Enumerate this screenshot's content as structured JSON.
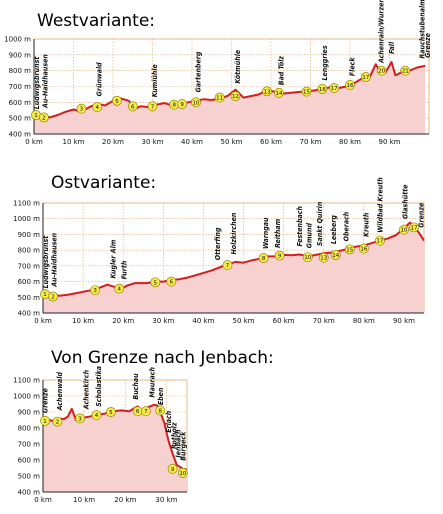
{
  "chart_data": [
    {
      "type": "area",
      "title": "Westvariante:",
      "x_unit": "km",
      "y_unit": "m",
      "xlim": [
        0,
        100
      ],
      "ylim": [
        400,
        1000
      ],
      "x_ticks": [
        0,
        10,
        20,
        30,
        40,
        50,
        60,
        70,
        80,
        90
      ],
      "y_ticks": [
        400,
        500,
        600,
        700,
        800,
        900,
        1000
      ],
      "grid": true,
      "colors": {
        "fill": "#f7d0d0",
        "line": "#d21e1e",
        "marker_fill": "#f4ea4a",
        "marker_stroke": "#8a7a00",
        "grid": "#e3a96a",
        "axis": "#222222"
      },
      "profile": [
        [
          0,
          500
        ],
        [
          2,
          520
        ],
        [
          4,
          505
        ],
        [
          6,
          520
        ],
        [
          8,
          540
        ],
        [
          10,
          555
        ],
        [
          12,
          540
        ],
        [
          14,
          570
        ],
        [
          16,
          590
        ],
        [
          18,
          580
        ],
        [
          20,
          610
        ],
        [
          22,
          625
        ],
        [
          24,
          610
        ],
        [
          25.5,
          560
        ],
        [
          27,
          575
        ],
        [
          29,
          570
        ],
        [
          31,
          585
        ],
        [
          33,
          595
        ],
        [
          35,
          580
        ],
        [
          37,
          590
        ],
        [
          39,
          600
        ],
        [
          41,
          610
        ],
        [
          43,
          620
        ],
        [
          45,
          615
        ],
        [
          47,
          625
        ],
        [
          49,
          640
        ],
        [
          51,
          680
        ],
        [
          53,
          630
        ],
        [
          55,
          640
        ],
        [
          57,
          650
        ],
        [
          59,
          680
        ],
        [
          61,
          665
        ],
        [
          63,
          655
        ],
        [
          65,
          660
        ],
        [
          67,
          665
        ],
        [
          69,
          670
        ],
        [
          71,
          675
        ],
        [
          73,
          685
        ],
        [
          75,
          695
        ],
        [
          77,
          690
        ],
        [
          79,
          700
        ],
        [
          81,
          720
        ],
        [
          83,
          750
        ],
        [
          85,
          760
        ],
        [
          86.5,
          840
        ],
        [
          87.5,
          800
        ],
        [
          89,
          790
        ],
        [
          90.5,
          855
        ],
        [
          91.5,
          770
        ],
        [
          93,
          790
        ],
        [
          95,
          800
        ],
        [
          97,
          820
        ],
        [
          99,
          830
        ]
      ],
      "markers": [
        {
          "n": "1",
          "x": 0.5,
          "y": 520
        },
        {
          "n": "2",
          "x": 2.5,
          "y": 505
        },
        {
          "n": "3",
          "x": 12,
          "y": 560
        },
        {
          "n": "4",
          "x": 16,
          "y": 570
        },
        {
          "n": "5",
          "x": 21,
          "y": 610
        },
        {
          "n": "6",
          "x": 25,
          "y": 575
        },
        {
          "n": "7",
          "x": 30,
          "y": 575
        },
        {
          "n": "8",
          "x": 35.5,
          "y": 585
        },
        {
          "n": "9",
          "x": 37.5,
          "y": 590
        },
        {
          "n": "10",
          "x": 41,
          "y": 600
        },
        {
          "n": "11",
          "x": 47,
          "y": 630
        },
        {
          "n": "12",
          "x": 51,
          "y": 640
        },
        {
          "n": "13",
          "x": 59,
          "y": 670
        },
        {
          "n": "14",
          "x": 62,
          "y": 660
        },
        {
          "n": "15",
          "x": 69,
          "y": 668
        },
        {
          "n": "16",
          "x": 73,
          "y": 685
        },
        {
          "n": "17",
          "x": 76,
          "y": 690
        },
        {
          "n": "16",
          "x": 80,
          "y": 710
        },
        {
          "n": "17",
          "x": 84,
          "y": 760
        },
        {
          "n": "20",
          "x": 88,
          "y": 800
        },
        {
          "n": "21",
          "x": 94,
          "y": 800
        }
      ],
      "places": [
        {
          "label": "Ludwigsbrunst",
          "x": 0.6
        },
        {
          "label": "Au-Haidhausen",
          "x": 2.8
        },
        {
          "label": "Grünwald",
          "x": 16.5
        },
        {
          "label": "Kumiühle",
          "x": 30.5
        },
        {
          "label": "Gartenberg",
          "x": 41.5
        },
        {
          "label": "Kötmühle",
          "x": 51.5
        },
        {
          "label": "Bad Tölz",
          "x": 62.5
        },
        {
          "label": "Lenggries",
          "x": 73.5
        },
        {
          "label": "Fleck",
          "x": 80.5
        },
        {
          "label": "Achenrain/Wurzenstein",
          "x": 87.8
        },
        {
          "label": "Fall",
          "x": 90.5
        },
        {
          "label": "Rauchstubenalm",
          "x": 98.2
        },
        {
          "label": "Grenze",
          "x": 99.6
        }
      ]
    },
    {
      "type": "area",
      "title": "Ostvariante:",
      "x_unit": "km",
      "y_unit": "m",
      "xlim": [
        0,
        95
      ],
      "ylim": [
        400,
        1100
      ],
      "x_ticks": [
        0,
        10,
        20,
        30,
        40,
        50,
        60,
        70,
        80,
        90
      ],
      "y_ticks": [
        400,
        500,
        600,
        700,
        800,
        900,
        1000,
        1100
      ],
      "grid": true,
      "colors": {
        "fill": "#f7d0d0",
        "line": "#d21e1e",
        "marker_fill": "#f4ea4a",
        "marker_stroke": "#8a7a00",
        "grid": "#e3a96a",
        "axis": "#222222"
      },
      "profile": [
        [
          0,
          500
        ],
        [
          2,
          520
        ],
        [
          4,
          510
        ],
        [
          6,
          515
        ],
        [
          8,
          525
        ],
        [
          10,
          535
        ],
        [
          12,
          545
        ],
        [
          14,
          560
        ],
        [
          16,
          580
        ],
        [
          18,
          565
        ],
        [
          19,
          545
        ],
        [
          21,
          575
        ],
        [
          23,
          590
        ],
        [
          26,
          590
        ],
        [
          28,
          600
        ],
        [
          30,
          600
        ],
        [
          32,
          610
        ],
        [
          34,
          615
        ],
        [
          36,
          625
        ],
        [
          38,
          640
        ],
        [
          40,
          655
        ],
        [
          42,
          670
        ],
        [
          44,
          690
        ],
        [
          46,
          710
        ],
        [
          48,
          725
        ],
        [
          50,
          720
        ],
        [
          52,
          735
        ],
        [
          54,
          745
        ],
        [
          56,
          760
        ],
        [
          58,
          760
        ],
        [
          60,
          770
        ],
        [
          62,
          768
        ],
        [
          64,
          772
        ],
        [
          66,
          760
        ],
        [
          68,
          770
        ],
        [
          70,
          780
        ],
        [
          72,
          785
        ],
        [
          74,
          795
        ],
        [
          76,
          808
        ],
        [
          78,
          822
        ],
        [
          80,
          830
        ],
        [
          82,
          845
        ],
        [
          84,
          860
        ],
        [
          86,
          875
        ],
        [
          88,
          895
        ],
        [
          90,
          940
        ],
        [
          91.5,
          975
        ],
        [
          92.5,
          955
        ],
        [
          94,
          900
        ],
        [
          95,
          860
        ]
      ],
      "markers": [
        {
          "n": "1",
          "x": 0.5,
          "y": 520
        },
        {
          "n": "2",
          "x": 2.5,
          "y": 505
        },
        {
          "n": "3",
          "x": 13,
          "y": 545
        },
        {
          "n": "4",
          "x": 19,
          "y": 555
        },
        {
          "n": "5",
          "x": 28,
          "y": 595
        },
        {
          "n": "6",
          "x": 32,
          "y": 600
        },
        {
          "n": "7",
          "x": 46,
          "y": 705
        },
        {
          "n": "8",
          "x": 55,
          "y": 750
        },
        {
          "n": "9",
          "x": 59,
          "y": 765
        },
        {
          "n": "10",
          "x": 66,
          "y": 755
        },
        {
          "n": "13",
          "x": 70,
          "y": 752
        },
        {
          "n": "14",
          "x": 73,
          "y": 770
        },
        {
          "n": "15",
          "x": 76.5,
          "y": 805
        },
        {
          "n": "16",
          "x": 80,
          "y": 810
        },
        {
          "n": "17",
          "x": 84,
          "y": 860
        },
        {
          "n": "10",
          "x": 90,
          "y": 930
        },
        {
          "n": "17",
          "x": 92.5,
          "y": 945
        }
      ],
      "places": [
        {
          "label": "Ludwigsbrunst",
          "x": 0.6
        },
        {
          "label": "Au-Haidhausen",
          "x": 2.8
        },
        {
          "label": "Kugler Alm",
          "x": 17.5
        },
        {
          "label": "Furth",
          "x": 20.2
        },
        {
          "label": "Otterfing",
          "x": 43.5
        },
        {
          "label": "Holzkirchen",
          "x": 47.5
        },
        {
          "label": "Warngau",
          "x": 55.5
        },
        {
          "label": "Reitham",
          "x": 58.5
        },
        {
          "label": "Festenbach",
          "x": 64
        },
        {
          "label": "Gmund",
          "x": 66.3
        },
        {
          "label": "Sankt Quirin",
          "x": 69
        },
        {
          "label": "Leeberg",
          "x": 72.5
        },
        {
          "label": "Oberach",
          "x": 75.5
        },
        {
          "label": "Kreuth",
          "x": 80.5
        },
        {
          "label": "Wildbad Kreuth",
          "x": 84
        },
        {
          "label": "Glashütte",
          "x": 90.3
        },
        {
          "label": "Grenze",
          "x": 94.2
        }
      ]
    },
    {
      "type": "area",
      "title": "Von Grenze nach Jenbach:",
      "x_unit": "km",
      "y_unit": "m",
      "xlim": [
        0,
        35
      ],
      "ylim": [
        400,
        1100
      ],
      "x_ticks": [
        0,
        10,
        20,
        30
      ],
      "y_ticks": [
        400,
        500,
        600,
        700,
        800,
        900,
        1000,
        1100
      ],
      "grid": true,
      "colors": {
        "fill": "#f7d0d0",
        "line": "#d21e1e",
        "marker_fill": "#f4ea4a",
        "marker_stroke": "#8a7a00",
        "grid": "#e3a96a",
        "axis": "#222222"
      },
      "profile": [
        [
          0,
          840
        ],
        [
          1.5,
          850
        ],
        [
          3,
          840
        ],
        [
          4,
          860
        ],
        [
          5,
          855
        ],
        [
          6,
          870
        ],
        [
          7,
          920
        ],
        [
          8,
          850
        ],
        [
          9,
          860
        ],
        [
          11,
          870
        ],
        [
          13,
          880
        ],
        [
          15,
          890
        ],
        [
          17,
          905
        ],
        [
          19,
          910
        ],
        [
          21,
          905
        ],
        [
          22,
          920
        ],
        [
          23,
          935
        ],
        [
          24,
          900
        ],
        [
          25,
          920
        ],
        [
          26,
          935
        ],
        [
          27,
          945
        ],
        [
          27.8,
          940
        ],
        [
          28.5,
          900
        ],
        [
          29.5,
          830
        ],
        [
          30.5,
          720
        ],
        [
          31.5,
          640
        ],
        [
          32.5,
          570
        ],
        [
          34,
          545
        ],
        [
          35,
          540
        ]
      ],
      "markers": [
        {
          "n": "1",
          "x": 0.5,
          "y": 845
        },
        {
          "n": "2",
          "x": 3.5,
          "y": 840
        },
        {
          "n": "3",
          "x": 9,
          "y": 860
        },
        {
          "n": "4",
          "x": 13,
          "y": 880
        },
        {
          "n": "5",
          "x": 16.5,
          "y": 900
        },
        {
          "n": "6",
          "x": 23,
          "y": 905
        },
        {
          "n": "7",
          "x": 25,
          "y": 905
        },
        {
          "n": "8",
          "x": 28.5,
          "y": 910
        },
        {
          "n": "9",
          "x": 31.5,
          "y": 545
        },
        {
          "n": "10",
          "x": 34,
          "y": 520
        }
      ],
      "places": [
        {
          "label": "Grenze",
          "x": 0.5
        },
        {
          "label": "Achenwald",
          "x": 4
        },
        {
          "label": "Achenkirch",
          "x": 10.5
        },
        {
          "label": "Scholastika",
          "x": 13.5
        },
        {
          "label": "Buchau",
          "x": 22.5
        },
        {
          "label": "Maurach",
          "x": 26.5
        },
        {
          "label": "Eben",
          "x": 28.6
        },
        {
          "label": "Erlach",
          "x": 30.5
        },
        {
          "label": "Rotholz",
          "x": 31.8
        },
        {
          "label": "Jenbach",
          "x": 32.8
        },
        {
          "label": "Burgeck",
          "x": 34
        }
      ]
    }
  ]
}
